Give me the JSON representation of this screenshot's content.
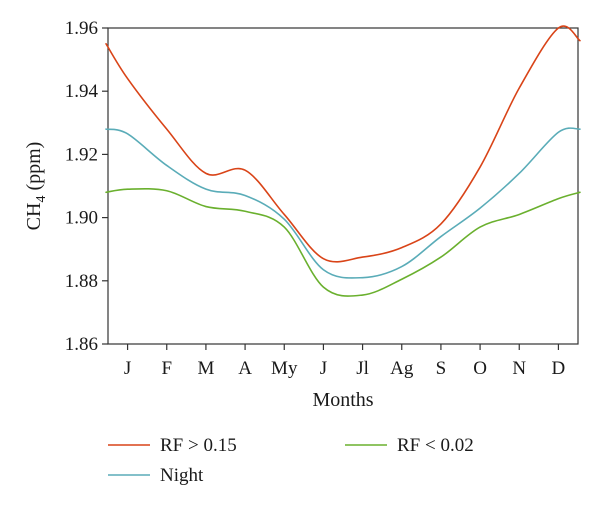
{
  "chart_data": {
    "type": "line",
    "title": "",
    "xlabel": "Months",
    "ylabel_main": "CH",
    "ylabel_sub": "4",
    "ylabel_unit": " (ppm)",
    "ylim": [
      1.86,
      1.96
    ],
    "yticks": [
      "1.86",
      "1.88",
      "1.90",
      "1.92",
      "1.94",
      "1.96"
    ],
    "categories": [
      "J",
      "F",
      "M",
      "A",
      "My",
      "J",
      "Jl",
      "Ag",
      "S",
      "O",
      "N",
      "D"
    ],
    "grid": false,
    "legend": "bottom",
    "series": [
      {
        "name": "RF > 0.15",
        "color": "#d94418",
        "points": [
          [
            -0.55,
            1.955
          ],
          [
            0.0,
            1.944
          ],
          [
            1.0,
            1.928
          ],
          [
            2.0,
            1.914
          ],
          [
            3.0,
            1.915
          ],
          [
            4.0,
            1.901
          ],
          [
            5.0,
            1.887
          ],
          [
            6.0,
            1.8875
          ],
          [
            7.0,
            1.8905
          ],
          [
            8.0,
            1.898
          ],
          [
            9.0,
            1.916
          ],
          [
            10.0,
            1.941
          ],
          [
            11.0,
            1.96
          ],
          [
            11.55,
            1.956
          ]
        ]
      },
      {
        "name": "Night",
        "color": "#5aacb8",
        "points": [
          [
            -0.55,
            1.928
          ],
          [
            0.0,
            1.9265
          ],
          [
            1.0,
            1.9165
          ],
          [
            2.0,
            1.909
          ],
          [
            3.0,
            1.907
          ],
          [
            4.0,
            1.8995
          ],
          [
            5.0,
            1.8835
          ],
          [
            6.0,
            1.881
          ],
          [
            7.0,
            1.8845
          ],
          [
            8.0,
            1.894
          ],
          [
            9.0,
            1.903
          ],
          [
            10.0,
            1.914
          ],
          [
            11.0,
            1.927
          ],
          [
            11.55,
            1.928
          ]
        ]
      },
      {
        "name": "RF < 0.02",
        "color": "#6ab02e",
        "points": [
          [
            -0.55,
            1.908
          ],
          [
            0.0,
            1.909
          ],
          [
            1.0,
            1.9085
          ],
          [
            2.0,
            1.9035
          ],
          [
            3.0,
            1.902
          ],
          [
            4.0,
            1.897
          ],
          [
            5.0,
            1.878
          ],
          [
            6.0,
            1.8755
          ],
          [
            7.0,
            1.8805
          ],
          [
            8.0,
            1.8875
          ],
          [
            9.0,
            1.897
          ],
          [
            10.0,
            1.901
          ],
          [
            11.0,
            1.906
          ],
          [
            11.55,
            1.908
          ]
        ]
      }
    ]
  }
}
